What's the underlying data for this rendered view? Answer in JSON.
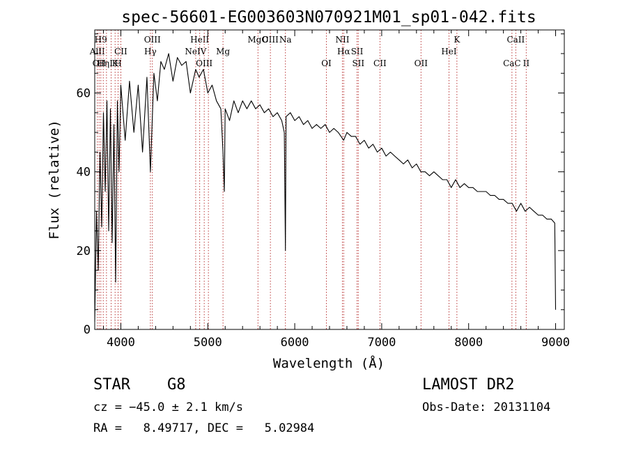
{
  "page_title": "spec-56601-EG003603N070921M01_sp01-042.fits",
  "info": {
    "class": "STAR",
    "subclass": "G8",
    "survey": "LAMOST DR2",
    "cz": "cz = −45.0 ± 2.1 km/s",
    "obs_date": "Obs-Date: 20131104",
    "coords": "RA =   8.49717, DEC =   5.02984"
  },
  "chart_data": {
    "type": "line",
    "title": "spec-56601-EG003603N070921M01_sp01-042.fits",
    "xlabel": "Wavelength (Å)",
    "ylabel": "Flux (relative)",
    "xlim": [
      3700,
      9100
    ],
    "ylim": [
      0,
      76
    ],
    "xticks": [
      4000,
      5000,
      6000,
      7000,
      8000,
      9000
    ],
    "yticks": [
      0,
      20,
      40,
      60
    ],
    "line_color": "#000000",
    "marker_color": "#b22222",
    "grid": false,
    "series": [
      {
        "values_x": [
          3700,
          3720,
          3740,
          3760,
          3780,
          3800,
          3820,
          3840,
          3860,
          3880,
          3900,
          3920,
          3940,
          3960,
          3980,
          4000,
          4050,
          4100,
          4150,
          4200,
          4250,
          4300,
          4340,
          4380,
          4420,
          4460,
          4500,
          4550,
          4600,
          4650,
          4700,
          4750,
          4800,
          4861,
          4900,
          4950,
          5000,
          5050,
          5100,
          5150,
          5175,
          5190,
          5200,
          5250,
          5300,
          5350,
          5400,
          5450,
          5500,
          5550,
          5600,
          5650,
          5700,
          5750,
          5800,
          5850,
          5880,
          5893,
          5900,
          5950,
          6000,
          6050,
          6100,
          6150,
          6200,
          6250,
          6300,
          6350,
          6400,
          6450,
          6500,
          6563,
          6600,
          6650,
          6700,
          6750,
          6800,
          6850,
          6900,
          6950,
          7000,
          7050,
          7100,
          7150,
          7200,
          7250,
          7300,
          7350,
          7400,
          7450,
          7500,
          7550,
          7600,
          7650,
          7700,
          7750,
          7800,
          7850,
          7900,
          7950,
          8000,
          8050,
          8100,
          8150,
          8200,
          8250,
          8300,
          8350,
          8400,
          8450,
          8500,
          8550,
          8600,
          8650,
          8700,
          8750,
          8800,
          8850,
          8900,
          8950,
          8990,
          9000
        ],
        "values_y": [
          2,
          30,
          15,
          45,
          26,
          55,
          35,
          58,
          25,
          56,
          22,
          52,
          12,
          58,
          40,
          62,
          48,
          63,
          50,
          62,
          45,
          64,
          40,
          65,
          58,
          68,
          66,
          70,
          63,
          69,
          67,
          68,
          60,
          66,
          64,
          66,
          60,
          62,
          58,
          56,
          45,
          35,
          56,
          53,
          58,
          55,
          58,
          56,
          58,
          56,
          57,
          55,
          56,
          54,
          55,
          53,
          50,
          20,
          54,
          55,
          53,
          54,
          52,
          53,
          51,
          52,
          51,
          52,
          50,
          51,
          50,
          48,
          50,
          49,
          49,
          47,
          48,
          46,
          47,
          45,
          46,
          44,
          45,
          44,
          43,
          42,
          43,
          41,
          42,
          40,
          40,
          39,
          40,
          39,
          38,
          38,
          36,
          38,
          36,
          37,
          36,
          36,
          35,
          35,
          35,
          34,
          34,
          33,
          33,
          32,
          32,
          30,
          32,
          30,
          31,
          30,
          29,
          29,
          28,
          28,
          27,
          5
        ]
      }
    ],
    "line_markers": [
      {
        "x": 3730,
        "row": 1,
        "label": "AlII"
      },
      {
        "x": 3750,
        "row": 2,
        "label": "OII"
      },
      {
        "x": 3770,
        "row": 0,
        "label": "H9"
      },
      {
        "x": 3798,
        "row": 2,
        "label": "Hη"
      },
      {
        "x": 3835,
        "row": 1,
        "label": ""
      },
      {
        "x": 3889,
        "row": 2,
        "label": "I"
      },
      {
        "x": 3934,
        "row": 2,
        "label": "K"
      },
      {
        "x": 3968,
        "row": 2,
        "label": "H"
      },
      {
        "x": 4000,
        "row": 1,
        "label": "CII"
      },
      {
        "x": 4340,
        "row": 1,
        "label": "Hγ"
      },
      {
        "x": 4363,
        "row": 0,
        "label": "OIII"
      },
      {
        "x": 4861,
        "row": 1,
        "label": "NeIV"
      },
      {
        "x": 4907,
        "row": 0,
        "label": "HeII"
      },
      {
        "x": 4959,
        "row": 2,
        "label": "OIII"
      },
      {
        "x": 5007,
        "row": 2,
        "label": ""
      },
      {
        "x": 5175,
        "row": 1,
        "label": "Mg"
      },
      {
        "x": 5577,
        "row": 0,
        "label": "MgO"
      },
      {
        "x": 5720,
        "row": 0,
        "label": "CIII"
      },
      {
        "x": 5893,
        "row": 0,
        "label": "Na"
      },
      {
        "x": 6364,
        "row": 2,
        "label": "OI"
      },
      {
        "x": 6548,
        "row": 0,
        "label": "NII"
      },
      {
        "x": 6563,
        "row": 1,
        "label": "Hα"
      },
      {
        "x": 6717,
        "row": 1,
        "label": "SII"
      },
      {
        "x": 6731,
        "row": 2,
        "label": "SII"
      },
      {
        "x": 6980,
        "row": 2,
        "label": "CII"
      },
      {
        "x": 7452,
        "row": 2,
        "label": "OII"
      },
      {
        "x": 7774,
        "row": 1,
        "label": "HeI"
      },
      {
        "x": 7865,
        "row": 0,
        "label": "K"
      },
      {
        "x": 8498,
        "row": 2,
        "label": "CaC"
      },
      {
        "x": 8542,
        "row": 0,
        "label": "CaII"
      },
      {
        "x": 8662,
        "row": 2,
        "label": "II"
      }
    ]
  }
}
